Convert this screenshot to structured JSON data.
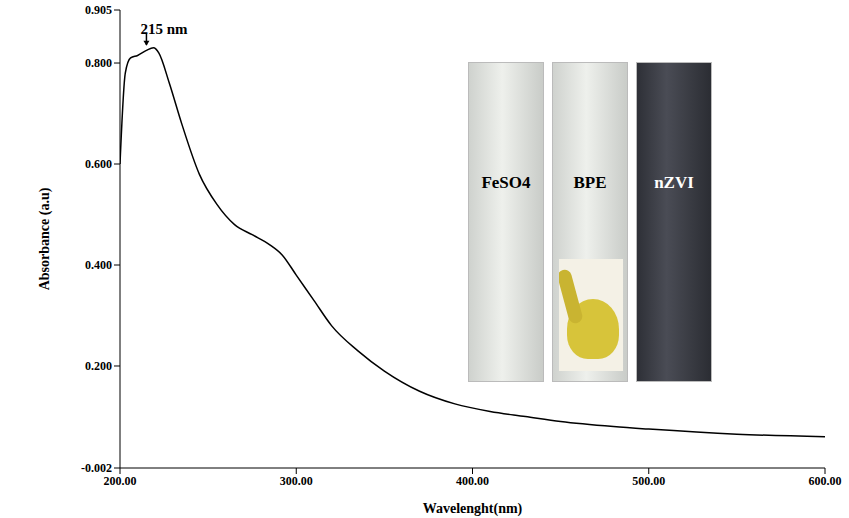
{
  "chart_data": {
    "type": "line",
    "x_label": "Wavelenght(nm)",
    "y_label": "Absorbance (a.u)",
    "annotation": {
      "text": "215 nm",
      "x": 215,
      "y": 0.83
    },
    "inset_labels": [
      "FeSO4",
      "BPE",
      "nZVI"
    ],
    "x": [
      200,
      203,
      206,
      210,
      215,
      219,
      222,
      228,
      235,
      245,
      255,
      265,
      275,
      285,
      292,
      300,
      310,
      320,
      335,
      350,
      370,
      390,
      410,
      430,
      450,
      480,
      500,
      550,
      600
    ],
    "series": [
      {
        "name": "nZVI",
        "color": "#000000",
        "values": [
          0.6,
          0.78,
          0.81,
          0.815,
          0.825,
          0.83,
          0.82,
          0.76,
          0.68,
          0.58,
          0.52,
          0.48,
          0.46,
          0.44,
          0.42,
          0.38,
          0.33,
          0.28,
          0.23,
          0.19,
          0.15,
          0.125,
          0.11,
          0.1,
          0.09,
          0.08,
          0.075,
          0.065,
          0.06
        ]
      }
    ],
    "xlim": [
      200,
      600
    ],
    "xticks": [
      {
        "value": 200,
        "label": "200.00"
      },
      {
        "value": 300,
        "label": "300.00"
      },
      {
        "value": 400,
        "label": "400.00"
      },
      {
        "value": 500,
        "label": "500.00"
      },
      {
        "value": 600,
        "label": "600.00"
      }
    ],
    "ylim": [
      -0.002,
      0.905
    ],
    "yticks": [
      -0.002,
      {
        "value": 0.2,
        "label": "0.200"
      },
      {
        "value": 0.4,
        "label": "0.400"
      },
      {
        "value": 0.6,
        "label": "0.600"
      },
      {
        "value": 0.8,
        "label": "0.800"
      },
      0.905
    ],
    "grid": false
  }
}
